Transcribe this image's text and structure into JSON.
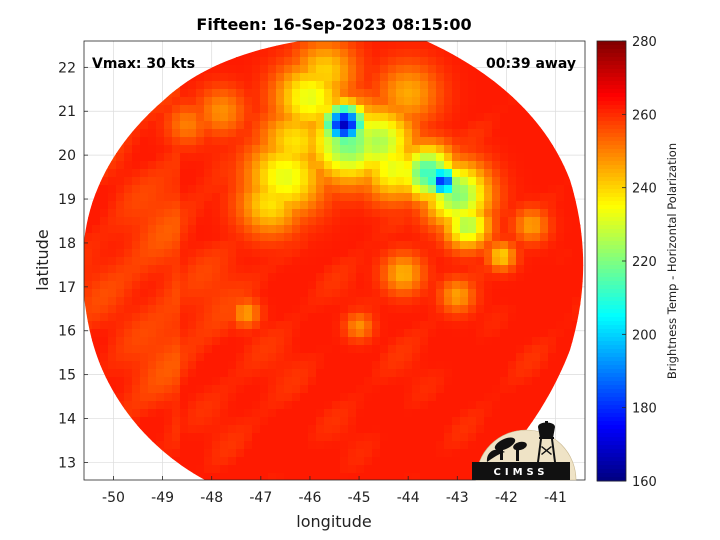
{
  "chart_data": {
    "type": "heatmap",
    "title": "Fifteen: 16-Sep-2023 08:15:00",
    "xlabel": "longitude",
    "ylabel": "latitude",
    "xlim": [
      -50.6,
      -40.4
    ],
    "ylim": [
      12.6,
      22.6
    ],
    "x_ticks": [
      -50,
      -49,
      -48,
      -47,
      -46,
      -45,
      -44,
      -43,
      -42,
      -41
    ],
    "y_ticks": [
      13,
      14,
      15,
      16,
      17,
      18,
      19,
      20,
      21,
      22
    ],
    "grid": true,
    "annotations": {
      "left": "Vmax: 30 kts",
      "right": "00:39 away"
    },
    "colorbar": {
      "label": "Brightness Temp - Horizontal Polarization",
      "min": 160,
      "max": 280,
      "ticks": [
        160,
        180,
        200,
        220,
        240,
        260,
        280
      ],
      "colormap": "jet",
      "location": "right"
    },
    "swath": {
      "center_lon": -45.5,
      "center_lat": 17.5,
      "background_value": 262
    },
    "features": [
      {
        "lon": -45.3,
        "lat": 20.7,
        "radius_deg": 0.28,
        "min_value": 168
      },
      {
        "lon": -45.2,
        "lat": 20.3,
        "radius_deg": 0.55,
        "min_value": 218
      },
      {
        "lon": -44.6,
        "lat": 20.3,
        "radius_deg": 0.5,
        "min_value": 225
      },
      {
        "lon": -46.0,
        "lat": 21.3,
        "radius_deg": 0.5,
        "min_value": 232
      },
      {
        "lon": -45.7,
        "lat": 21.9,
        "radius_deg": 0.45,
        "min_value": 240
      },
      {
        "lon": -43.3,
        "lat": 19.4,
        "radius_deg": 0.22,
        "min_value": 180
      },
      {
        "lon": -43.6,
        "lat": 19.6,
        "radius_deg": 0.38,
        "min_value": 212
      },
      {
        "lon": -43.0,
        "lat": 19.1,
        "radius_deg": 0.45,
        "min_value": 220
      },
      {
        "lon": -42.8,
        "lat": 18.4,
        "radius_deg": 0.32,
        "min_value": 225
      },
      {
        "lon": -46.5,
        "lat": 19.5,
        "radius_deg": 0.55,
        "min_value": 232
      },
      {
        "lon": -46.8,
        "lat": 18.9,
        "radius_deg": 0.45,
        "min_value": 238
      },
      {
        "lon": -44.3,
        "lat": 19.7,
        "radius_deg": 0.45,
        "min_value": 232
      },
      {
        "lon": -42.1,
        "lat": 17.7,
        "radius_deg": 0.2,
        "min_value": 240
      },
      {
        "lon": -46.3,
        "lat": 20.3,
        "radius_deg": 0.5,
        "min_value": 238
      },
      {
        "lon": -44.0,
        "lat": 21.4,
        "radius_deg": 0.45,
        "min_value": 245
      },
      {
        "lon": -47.8,
        "lat": 21.0,
        "radius_deg": 0.35,
        "min_value": 248
      },
      {
        "lon": -48.5,
        "lat": 20.7,
        "radius_deg": 0.3,
        "min_value": 250
      },
      {
        "lon": -47.3,
        "lat": 16.4,
        "radius_deg": 0.2,
        "min_value": 246
      },
      {
        "lon": -44.1,
        "lat": 17.3,
        "radius_deg": 0.3,
        "min_value": 244
      },
      {
        "lon": -43.0,
        "lat": 16.8,
        "radius_deg": 0.25,
        "min_value": 246
      },
      {
        "lon": -45.0,
        "lat": 16.1,
        "radius_deg": 0.2,
        "min_value": 248
      },
      {
        "lon": -41.5,
        "lat": 18.4,
        "radius_deg": 0.25,
        "min_value": 246
      }
    ],
    "logo_text": "CIMSS"
  }
}
